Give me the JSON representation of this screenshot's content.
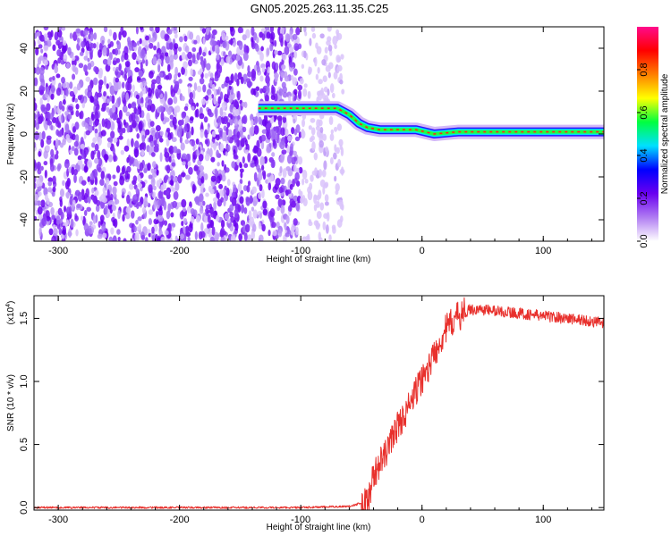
{
  "title": "GN05.2025.263.11.35.C25",
  "chart_data": [
    {
      "type": "heatmap",
      "title": "GN05.2025.263.11.35.C25",
      "xlabel": "Height of straight line (km)",
      "ylabel": "Frequency (Hz)",
      "xlim": [
        -320,
        150
      ],
      "ylim": [
        -50,
        50
      ],
      "x_ticks": [
        "-300",
        "-200",
        "-100",
        "0",
        "100"
      ],
      "y_ticks": [
        "-40",
        "-20",
        "0",
        "20",
        "40"
      ],
      "colorbar": {
        "label": "Normalized spectral amplitude",
        "range": [
          0,
          1
        ],
        "ticks": [
          "0.0",
          "0.2",
          "0.4",
          "0.6",
          "0.8"
        ],
        "colormap": [
          "#ffffff",
          "#b07cf2",
          "#6a00f0",
          "#0000ff",
          "#00e0ff",
          "#00ff40",
          "#ffff00",
          "#ff7f00",
          "#ff0000",
          "#ff0a8c"
        ]
      },
      "ridge": [
        {
          "x": -135,
          "y": 12
        },
        {
          "x": -120,
          "y": 12
        },
        {
          "x": -100,
          "y": 12
        },
        {
          "x": -80,
          "y": 12
        },
        {
          "x": -70,
          "y": 12
        },
        {
          "x": -60,
          "y": 9
        },
        {
          "x": -52,
          "y": 5
        },
        {
          "x": -45,
          "y": 3
        },
        {
          "x": -35,
          "y": 2
        },
        {
          "x": -20,
          "y": 2
        },
        {
          "x": -5,
          "y": 2
        },
        {
          "x": 10,
          "y": 0
        },
        {
          "x": 30,
          "y": 1
        },
        {
          "x": 50,
          "y": 1
        },
        {
          "x": 80,
          "y": 1
        },
        {
          "x": 100,
          "y": 1
        },
        {
          "x": 115,
          "y": 1
        },
        {
          "x": 130,
          "y": 1
        },
        {
          "x": 150,
          "y": 1
        }
      ],
      "noise_region": [
        -320,
        -70
      ]
    },
    {
      "type": "line",
      "xlabel": "Height of straight line (km)",
      "ylabel": "SNR (10 * v/v)",
      "y_multiplier": "(x10",
      "y_multiplier_exp": "4",
      "xlim": [
        -320,
        150
      ],
      "ylim": [
        -0.02,
        1.68
      ],
      "x_ticks": [
        "-300",
        "-200",
        "-100",
        "0",
        "100"
      ],
      "y_ticks": [
        "0.0",
        "0.5",
        "1.0",
        "1.5"
      ],
      "color": "#e8302c",
      "series": [
        {
          "x": [
            -320,
            -200,
            -100,
            -60,
            -45,
            -40,
            -35,
            -30,
            -25,
            -20,
            -15,
            -10,
            -5,
            0,
            5,
            10,
            15,
            20,
            30,
            40,
            50,
            70,
            90,
            110,
            130,
            150
          ],
          "y": [
            0.0,
            0.0,
            0.0,
            0.01,
            0.05,
            0.25,
            0.35,
            0.42,
            0.55,
            0.65,
            0.72,
            0.82,
            0.92,
            1.02,
            1.1,
            1.22,
            1.32,
            1.42,
            1.52,
            1.57,
            1.57,
            1.55,
            1.53,
            1.51,
            1.49,
            1.46
          ]
        }
      ]
    }
  ]
}
